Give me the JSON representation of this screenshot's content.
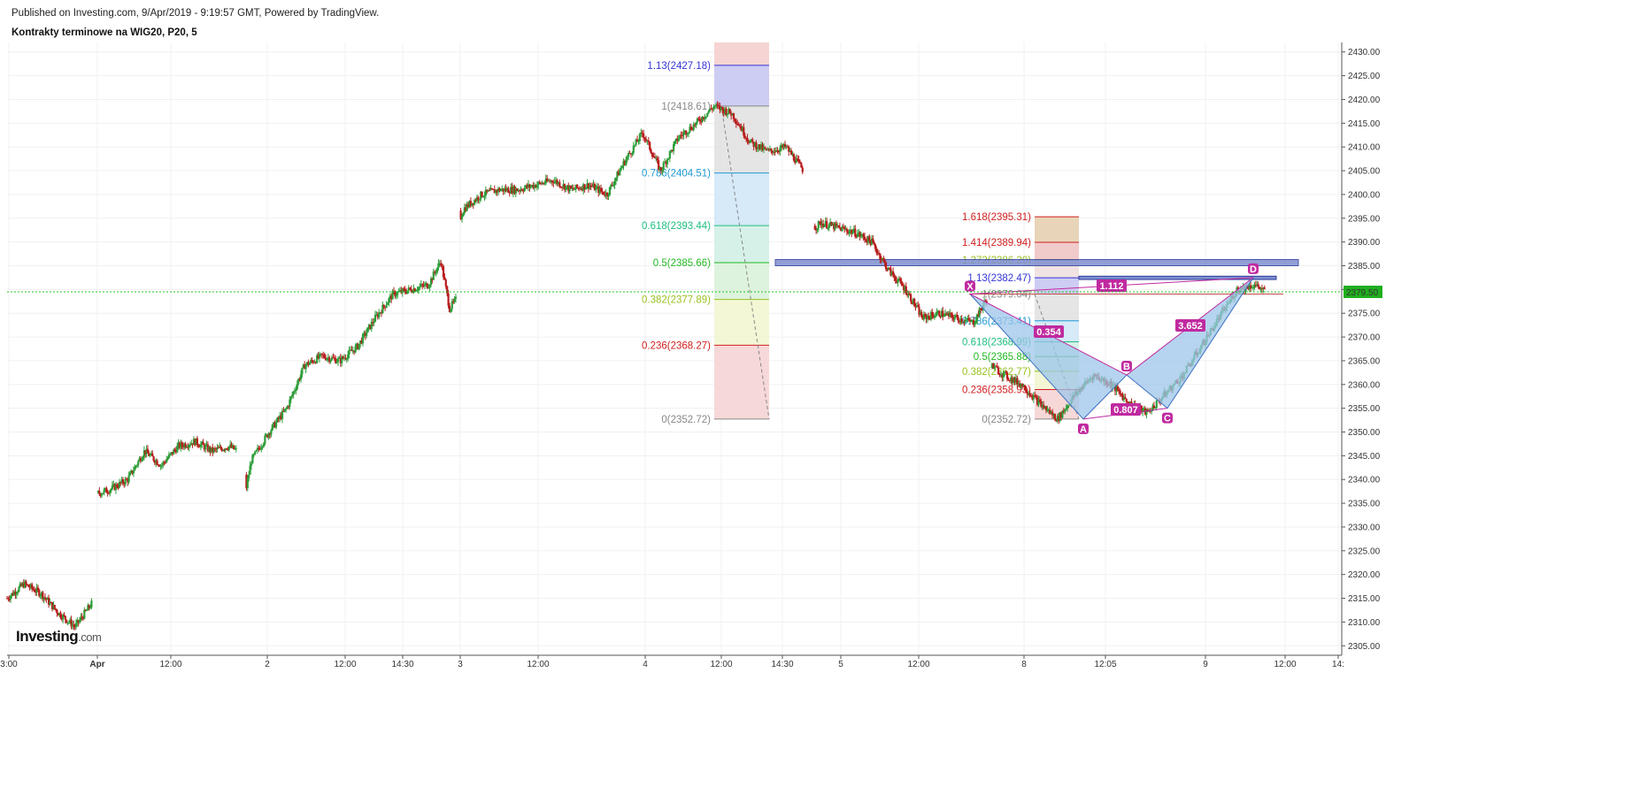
{
  "header": {
    "published": "Published on Investing.com, 9/Apr/2019 - 9:19:57 GMT, Powered by TradingView.",
    "symbol": "Kontrakty terminowe na WIG20, P20, 5"
  },
  "logo": {
    "name": "Investing",
    "suffix": ".com"
  },
  "colors": {
    "up": "#2e9e3a",
    "down": "#b81c1c",
    "current_price_line": "#22c422",
    "pattern": "#c02aa0",
    "pattern_fill": "#9ec5ea"
  },
  "chart_data": {
    "type": "candlestick",
    "title": "Kontrakty terminowe na WIG20, P20, 5",
    "y_axis_ticks": [
      "2430.00",
      "2425.00",
      "2420.00",
      "2415.00",
      "2410.00",
      "2405.00",
      "2400.00",
      "2395.00",
      "2390.00",
      "2385.00",
      "2380.00",
      "2375.00",
      "2370.00",
      "2365.00",
      "2360.00",
      "2355.00",
      "2350.00",
      "2345.00",
      "2340.00",
      "2335.00",
      "2330.00",
      "2325.00",
      "2320.00",
      "2315.00",
      "2310.00",
      "2305.00"
    ],
    "ylim": [
      2303,
      2432
    ],
    "x_axis_ticks": [
      "3:00",
      "Apr",
      "12:00",
      "2",
      "12:00",
      "14:30",
      "3",
      "12:00",
      "4",
      "12:00",
      "14:30",
      "5",
      "12:00",
      "8",
      "12:05",
      "9",
      "12:00",
      "14:"
    ],
    "current_price": 2379.5,
    "current_price_label": "2379.50",
    "price_path": [
      [
        0,
        2315
      ],
      [
        1,
        2318
      ],
      [
        2,
        2316
      ],
      [
        3,
        2312
      ],
      [
        4,
        2309
      ],
      [
        5,
        2314
      ],
      [
        5.2,
        2337
      ],
      [
        6,
        2338
      ],
      [
        7,
        2340
      ],
      [
        8,
        2346
      ],
      [
        9,
        2343
      ],
      [
        10,
        2347
      ],
      [
        11,
        2348
      ],
      [
        12,
        2346
      ],
      [
        13,
        2347
      ],
      [
        13.5,
        2346
      ],
      [
        13.7,
        2338
      ],
      [
        14,
        2344
      ],
      [
        15,
        2350
      ],
      [
        16,
        2355
      ],
      [
        17,
        2364
      ],
      [
        18,
        2366
      ],
      [
        19,
        2365
      ],
      [
        20,
        2368
      ],
      [
        21,
        2374
      ],
      [
        22,
        2379
      ],
      [
        23,
        2380
      ],
      [
        24,
        2381
      ],
      [
        24.7,
        2386
      ],
      [
        25.2,
        2376
      ],
      [
        25.6,
        2378
      ],
      [
        25.8,
        2395
      ],
      [
        26,
        2397
      ],
      [
        27,
        2400
      ],
      [
        28,
        2401
      ],
      [
        29,
        2401
      ],
      [
        30,
        2402
      ],
      [
        31,
        2403
      ],
      [
        32,
        2401
      ],
      [
        33,
        2402
      ],
      [
        34,
        2400
      ],
      [
        35,
        2407
      ],
      [
        36,
        2413
      ],
      [
        37,
        2405
      ],
      [
        38,
        2412
      ],
      [
        39,
        2415
      ],
      [
        40,
        2418.6
      ],
      [
        41,
        2417
      ],
      [
        42,
        2411
      ],
      [
        43,
        2409
      ],
      [
        44,
        2410
      ],
      [
        45,
        2405
      ],
      [
        45.6,
        2393
      ],
      [
        46,
        2394
      ],
      [
        47,
        2393
      ],
      [
        48,
        2392
      ],
      [
        49,
        2390
      ],
      [
        50,
        2384
      ],
      [
        51,
        2380
      ],
      [
        52,
        2374
      ],
      [
        53,
        2375
      ],
      [
        54,
        2374
      ],
      [
        55,
        2373
      ],
      [
        55.8,
        2378
      ],
      [
        56.3,
        2364
      ],
      [
        57,
        2362
      ],
      [
        58,
        2360
      ],
      [
        59,
        2356
      ],
      [
        60,
        2352.7
      ],
      [
        61,
        2358
      ],
      [
        62,
        2362
      ],
      [
        63,
        2360
      ],
      [
        64,
        2356
      ],
      [
        65,
        2354
      ],
      [
        66,
        2358
      ],
      [
        67,
        2362
      ],
      [
        68,
        2368
      ],
      [
        69,
        2374
      ],
      [
        70,
        2380
      ],
      [
        71,
        2381
      ],
      [
        71.6,
        2379.5
      ]
    ],
    "fib_retracement_1": {
      "levels": [
        {
          "ratio": "1.13",
          "price": 2427.18,
          "label": "1.13(2427.18)",
          "color": "#3434d6",
          "fill": "#c8c8f2"
        },
        {
          "ratio": "1",
          "price": 2418.61,
          "label": "1(2418.61)",
          "color": "#888888",
          "fill": "#e2e2e2"
        },
        {
          "ratio": "0.786",
          "price": 2404.51,
          "label": "0.786(2404.51)",
          "color": "#1f9ad6",
          "fill": "#d2e8f7"
        },
        {
          "ratio": "0.618",
          "price": 2393.44,
          "label": "0.618(2393.44)",
          "color": "#1fbf7f",
          "fill": "#d2f0e6"
        },
        {
          "ratio": "0.5",
          "price": 2385.66,
          "label": "0.5(2385.66)",
          "color": "#22b822",
          "fill": "#daf2da"
        },
        {
          "ratio": "0.382",
          "price": 2377.89,
          "label": "0.382(2377.89)",
          "color": "#99c21f",
          "fill": "#f2f6d2"
        },
        {
          "ratio": "0.236",
          "price": 2368.27,
          "label": "0.236(2368.27)",
          "color": "#d01f1f",
          "fill": "#f6d4d4"
        },
        {
          "ratio": "0",
          "price": 2352.72,
          "label": "0(2352.72)",
          "color": "#888888",
          "fill": "#f6d4d4"
        }
      ],
      "top_extension_price": 2432
    },
    "fib_retracement_2": {
      "levels": [
        {
          "ratio": "1.618",
          "price": 2395.31,
          "label": "1.618(2395.31)",
          "color": "#d01f1f",
          "fill": "#e6cfb0"
        },
        {
          "ratio": "1.414",
          "price": 2389.94,
          "label": "1.414(2389.94)",
          "color": "#d01f1f",
          "fill": "#f0c4c4"
        },
        {
          "ratio": "1.272",
          "price": 2386.2,
          "label": "1.272(2386.20)",
          "color": "#99c21f",
          "fill": "#f0e0e0"
        },
        {
          "ratio": "1.13",
          "price": 2382.47,
          "label": "1.13(2382.47)",
          "color": "#3434d6",
          "fill": "#c8c8f2"
        },
        {
          "ratio": "1",
          "price": 2379.04,
          "label": "1(2379.04)",
          "color": "#888888",
          "fill": "#e2e2e2"
        },
        {
          "ratio": "0.786",
          "price": 2373.41,
          "label": "0.786(2373.41)",
          "color": "#1f9ad6",
          "fill": "#d2e8f7"
        },
        {
          "ratio": "0.618",
          "price": 2368.99,
          "label": "0.618(2368.99)",
          "color": "#1fbf7f",
          "fill": "#d2f0e6"
        },
        {
          "ratio": "0.5",
          "price": 2365.88,
          "label": "0.5(2365.88)",
          "color": "#22b822",
          "fill": "#daf2da"
        },
        {
          "ratio": "0.382",
          "price": 2362.77,
          "label": "0.382(2362.77)",
          "color": "#99c21f",
          "fill": "#f2f6d2"
        },
        {
          "ratio": "0.236",
          "price": 2358.93,
          "label": "0.236(2358.93)",
          "color": "#d01f1f",
          "fill": "#f6d4d4"
        },
        {
          "ratio": "0",
          "price": 2352.72,
          "label": "0(2352.72)",
          "color": "#888888",
          "fill": "#f6d4d4"
        }
      ]
    },
    "resistance_zone": {
      "low": 2385.0,
      "high": 2386.3
    },
    "pattern": {
      "points": [
        {
          "name": "X",
          "price": 2379.04
        },
        {
          "name": "A",
          "price": 2352.72
        },
        {
          "name": "B",
          "price": 2362.0
        },
        {
          "name": "C",
          "price": 2355.0
        },
        {
          "name": "D",
          "price": 2382.5
        }
      ],
      "ratios": [
        "0.354",
        "0.807",
        "3.652",
        "1.112"
      ]
    }
  }
}
